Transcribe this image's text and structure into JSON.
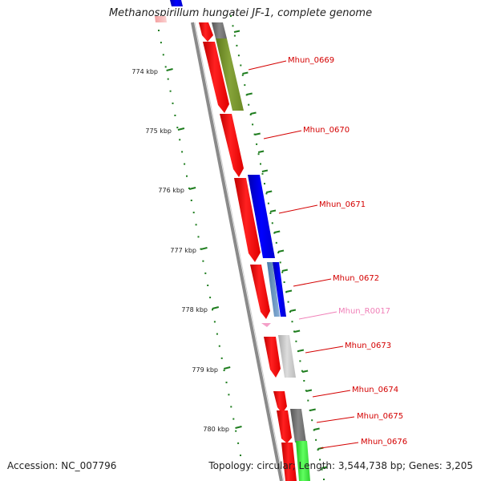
{
  "title": "Methanospirillum hungatei JF-1, complete genome",
  "footer": {
    "accession": "Accession: NC_007796",
    "summary": "Topology: circular; Length: 3,544,738 bp; Genes: 3,205"
  },
  "colors": {
    "gene_label": "#d40000",
    "rna_label": "#f080b8",
    "cds_forward": "#ff0000",
    "backbone": "#888888",
    "tick": "#1e7d1e"
  },
  "kbp_labels": [
    "774 kbp",
    "775 kbp",
    "776 kbp",
    "777 kbp",
    "778 kbp",
    "779 kbp",
    "780 kbp"
  ],
  "gene_labels": [
    "Mhun_0669",
    "Mhun_0670",
    "Mhun_0671",
    "Mhun_0672",
    "Mhun_R0017",
    "Mhun_0673",
    "Mhun_0674",
    "Mhun_0675",
    "Mhun_0676"
  ]
}
